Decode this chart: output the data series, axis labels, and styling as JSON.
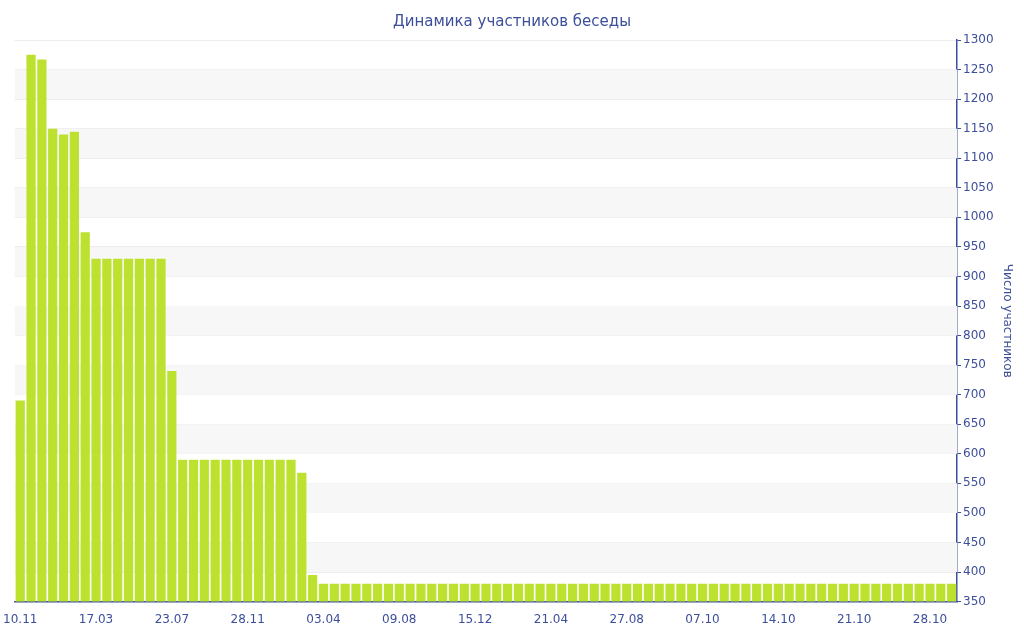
{
  "chart_data": {
    "type": "bar",
    "title": "Динамика участников беседы",
    "ylabel": "Число участников",
    "categories": [
      "10.11",
      null,
      null,
      null,
      null,
      null,
      null,
      "17.03",
      null,
      null,
      null,
      null,
      null,
      null,
      "23.07",
      null,
      null,
      null,
      null,
      null,
      null,
      "28.11",
      null,
      null,
      null,
      null,
      null,
      null,
      "03.04",
      null,
      null,
      null,
      null,
      null,
      null,
      "09.08",
      null,
      null,
      null,
      null,
      null,
      null,
      "15.12",
      null,
      null,
      null,
      null,
      null,
      null,
      "21.04",
      null,
      null,
      null,
      null,
      null,
      null,
      "27.08",
      null,
      null,
      null,
      null,
      null,
      null,
      "07.10",
      null,
      null,
      null,
      null,
      null,
      null,
      "14.10",
      null,
      null,
      null,
      null,
      null,
      null,
      "21.10",
      null,
      null,
      null,
      null,
      null,
      null,
      "28.10",
      null,
      null
    ],
    "values": [
      690,
      1275,
      1267,
      1150,
      1140,
      1145,
      975,
      930,
      930,
      930,
      930,
      930,
      930,
      930,
      740,
      590,
      590,
      590,
      590,
      590,
      590,
      590,
      590,
      590,
      590,
      590,
      568,
      395,
      380,
      380,
      380,
      380,
      380,
      380,
      380,
      380,
      380,
      380,
      380,
      380,
      380,
      380,
      380,
      380,
      380,
      380,
      380,
      380,
      380,
      380,
      380,
      380,
      380,
      380,
      380,
      380,
      380,
      380,
      380,
      380,
      380,
      380,
      380,
      380,
      380,
      380,
      380,
      380,
      380,
      380,
      380,
      380,
      380,
      380,
      380,
      380,
      380,
      380,
      380,
      380,
      380,
      380,
      380,
      380,
      380,
      380,
      380
    ],
    "color": "#bde12f",
    "ylim": [
      350,
      1300
    ],
    "yticks": [
      350,
      400,
      450,
      500,
      550,
      600,
      650,
      700,
      750,
      800,
      850,
      900,
      950,
      1000,
      1050,
      1100,
      1150,
      1200,
      1250,
      1300
    ],
    "grid": "y",
    "legend": false
  }
}
